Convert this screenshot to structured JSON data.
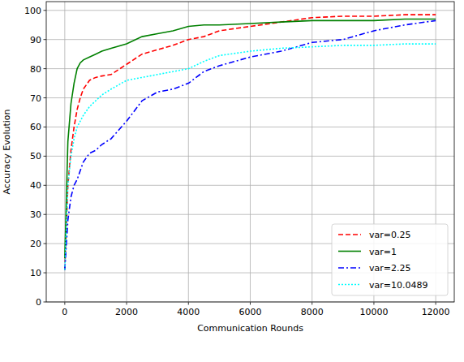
{
  "chart_data": {
    "type": "line",
    "x_label": "Communication Rounds",
    "y_label": "Accuracy Evolution",
    "x": [
      0,
      100,
      200,
      300,
      400,
      500,
      600,
      800,
      1000,
      1200,
      1500,
      2000,
      2500,
      3000,
      3500,
      4000,
      4500,
      5000,
      6000,
      7000,
      8000,
      9000,
      10000,
      11000,
      12000
    ],
    "series": [
      {
        "name": "var=0.25",
        "color": "#ff0000",
        "line_style": "dashed",
        "values": [
          11,
          40,
          52,
          60,
          66,
          70,
          73,
          76,
          77,
          77.5,
          78,
          81.5,
          85,
          86.5,
          88,
          90,
          91,
          93,
          94.5,
          96,
          97.5,
          98,
          98,
          98.5,
          98.5
        ]
      },
      {
        "name": "var=1",
        "color": "#008000",
        "line_style": "solid",
        "values": [
          15,
          55,
          68,
          75,
          80,
          82,
          83,
          84,
          85,
          86,
          87,
          88.5,
          91,
          92,
          93,
          94.5,
          95,
          95,
          95.5,
          96,
          96.5,
          96.5,
          96.5,
          97,
          97
        ]
      },
      {
        "name": "var=2.25",
        "color": "#0000ff",
        "line_style": "dashdot",
        "values": [
          11,
          28,
          36,
          40,
          42,
          45,
          48,
          51,
          52,
          54,
          56,
          62,
          69,
          72,
          73,
          75,
          79,
          81,
          84,
          86,
          89,
          90,
          93,
          95,
          96.5
        ]
      },
      {
        "name": "var=10.0489",
        "color": "#00ffff",
        "line_style": "dotted",
        "values": [
          11,
          40,
          50,
          56,
          60,
          62,
          64,
          67,
          69,
          71,
          73,
          76,
          77,
          78,
          79,
          80,
          82.5,
          84.5,
          86,
          87,
          87.5,
          88,
          88,
          88.5,
          88.5
        ]
      }
    ],
    "xlim": [
      -600,
      12600
    ],
    "ylim": [
      0,
      103
    ],
    "xticks": [
      0,
      2000,
      4000,
      6000,
      8000,
      10000,
      12000
    ],
    "yticks": [
      0,
      10,
      20,
      30,
      40,
      50,
      60,
      70,
      80,
      90,
      100
    ],
    "grid": true,
    "legend": "lower right"
  }
}
